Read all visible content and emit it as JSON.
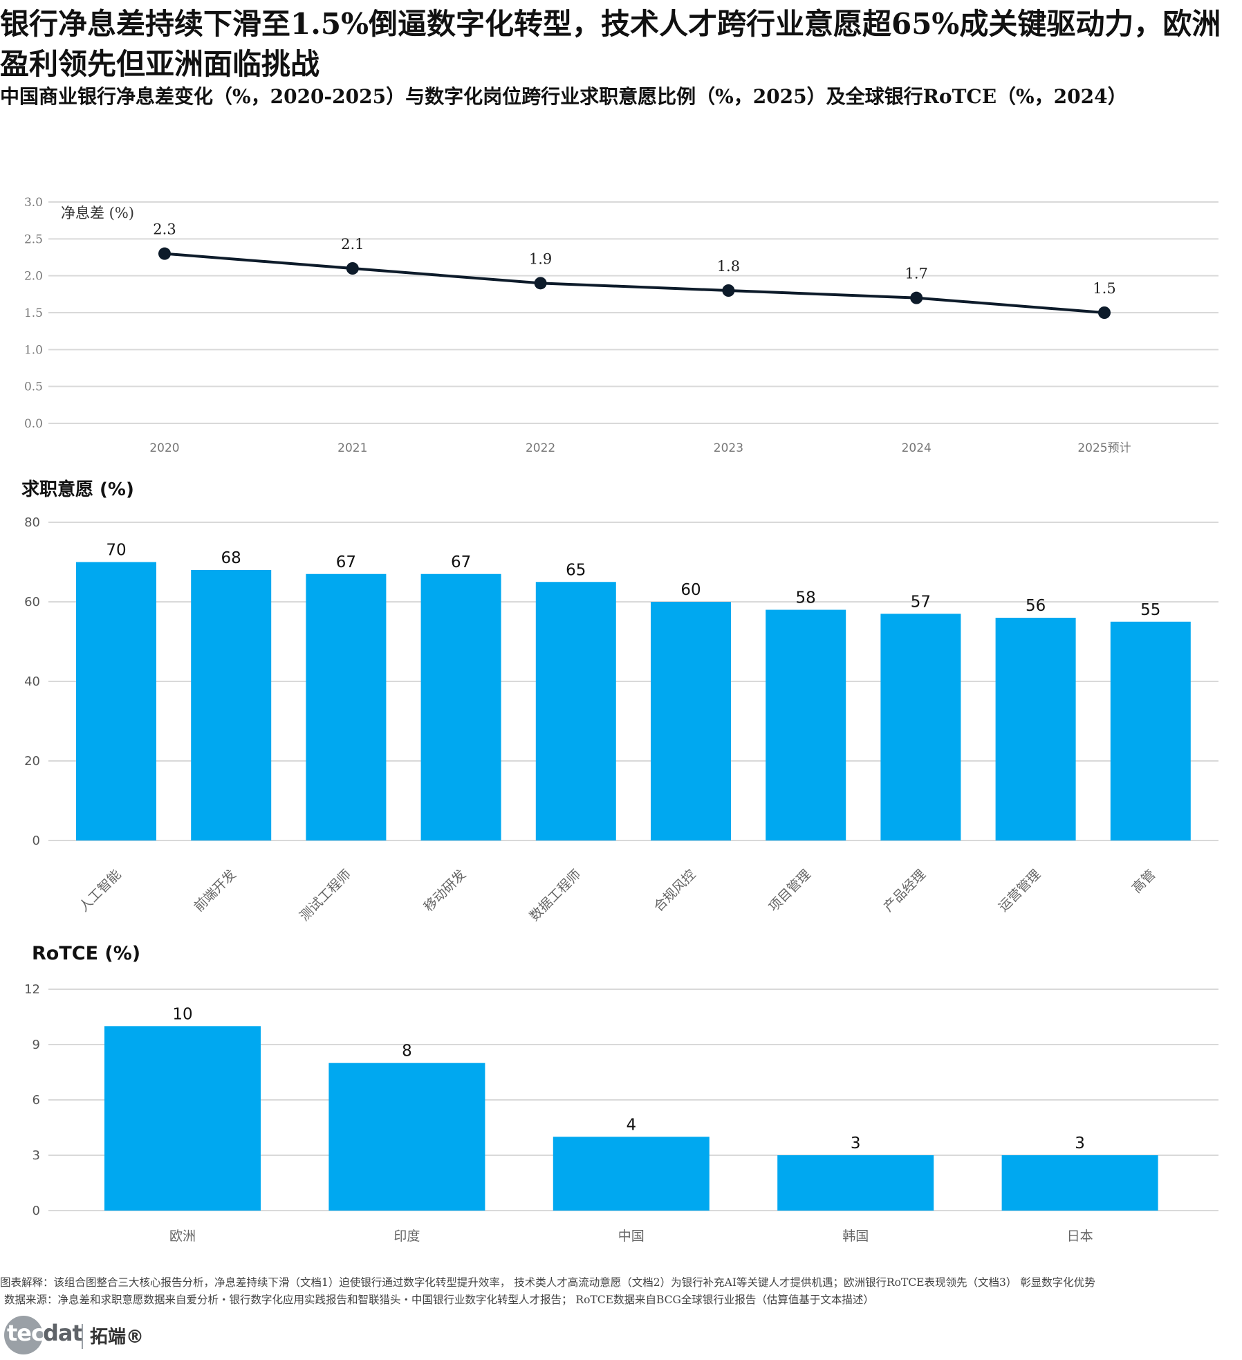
{
  "title": "银行净息差持续下滑至1.5%倒逼数字化转型，技术人才跨行业意愿超65%成关键驱动力，欧洲盈利领先但亚洲面临挑战",
  "subtitle": "中国商业银行净息差变化（%，2020-2025）与数字化岗位跨行业求职意愿比例（%，2025）及全球银行RoTCE（%，2024）",
  "chart_data": [
    {
      "type": "line",
      "ylabel": "净息差 (%)",
      "categories": [
        "2020",
        "2021",
        "2022",
        "2023",
        "2024",
        "2025预计"
      ],
      "values": [
        2.3,
        2.1,
        1.9,
        1.8,
        1.7,
        1.5
      ],
      "value_labels": [
        "2.3",
        "2.1",
        "1.9",
        "1.8",
        "1.7",
        "1.5"
      ],
      "ylim": [
        0,
        3
      ],
      "yticks": [
        "0.0",
        "0.5",
        "1.0",
        "1.5",
        "2.0",
        "2.5",
        "3.0"
      ],
      "grid": true,
      "line_color": "#0d1b2a"
    },
    {
      "type": "bar",
      "ylabel": "求职意愿 (%)",
      "categories": [
        "人工智能",
        "前端开发",
        "测试工程师",
        "移动研发",
        "数据工程师",
        "合规风控",
        "项目管理",
        "产品经理",
        "运营管理",
        "高管"
      ],
      "values": [
        70,
        68,
        67,
        67,
        65,
        60,
        58,
        57,
        56,
        55
      ],
      "ylim": [
        0,
        80
      ],
      "yticks": [
        "0",
        "20",
        "40",
        "60",
        "80"
      ],
      "grid": true,
      "bar_color": "#00a8f0"
    },
    {
      "type": "bar",
      "ylabel": "RoTCE (%)",
      "categories": [
        "欧洲",
        "印度",
        "中国",
        "韩国",
        "日本"
      ],
      "values": [
        10,
        8,
        4,
        3,
        3
      ],
      "ylim": [
        0,
        12
      ],
      "yticks": [
        "0",
        "3",
        "6",
        "9",
        "12"
      ],
      "grid": true,
      "bar_color": "#00a8f0"
    }
  ],
  "footer": {
    "note": "图表解释：该组合图整合三大核心报告分析，净息差持续下滑（文档1）迫使银行通过数字化转型提升效率， 技术类人才高流动意愿（文档2）为银行补充AI等关键人才提供机遇；欧洲银行RoTCE表现领先（文档3） 彰显数字化优势",
    "source": "数据来源：净息差和求职意愿数据来自爱分析・银行数字化应用实践报告和智联猎头・中国银行业数字化转型人才报告； RoTCE数据来自BCG全球银行业报告（估算值基于文本描述）"
  },
  "logo": {
    "tec": "tec",
    "dat": "dat",
    "cn": "拓端®"
  }
}
